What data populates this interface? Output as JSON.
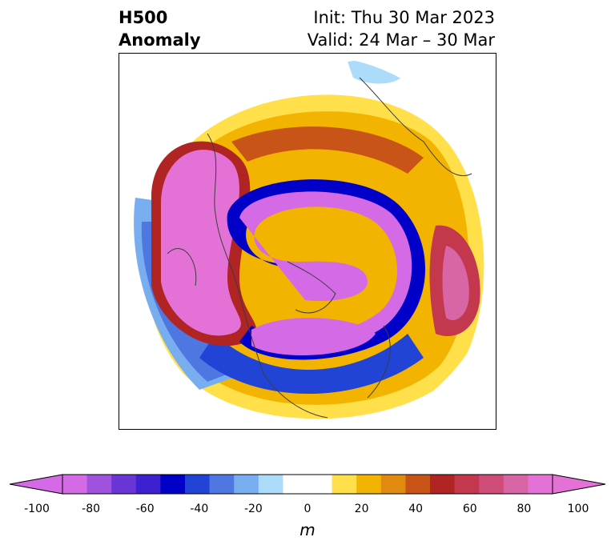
{
  "title": {
    "left_line1": "H500",
    "left_line2": "Anomaly",
    "right_line1": "Init: Thu 30 Mar 2023",
    "right_line2": "Valid: 24 Mar – 30 Mar"
  },
  "colorbar": {
    "unit": "m",
    "ticks": [
      "-100",
      "-80",
      "-60",
      "-40",
      "-20",
      "0",
      "20",
      "40",
      "60",
      "80",
      "100"
    ],
    "colors": [
      "#d46ae6",
      "#9e52de",
      "#6a35d6",
      "#3d20cf",
      "#0000c8",
      "#2244d6",
      "#4f77e2",
      "#78aeef",
      "#acdcf9",
      "#ffffff",
      "#ffffff",
      "#ffe04a",
      "#f2b400",
      "#e08a10",
      "#c85418",
      "#b02424",
      "#c4384e",
      "#cf4c78",
      "#d865a6",
      "#e472d6"
    ],
    "min_color": "#d46ae6",
    "max_color": "#e472d6"
  },
  "map": {
    "projection": "north-polar-stereographic",
    "field": "500 hPa geopotential height anomaly"
  }
}
